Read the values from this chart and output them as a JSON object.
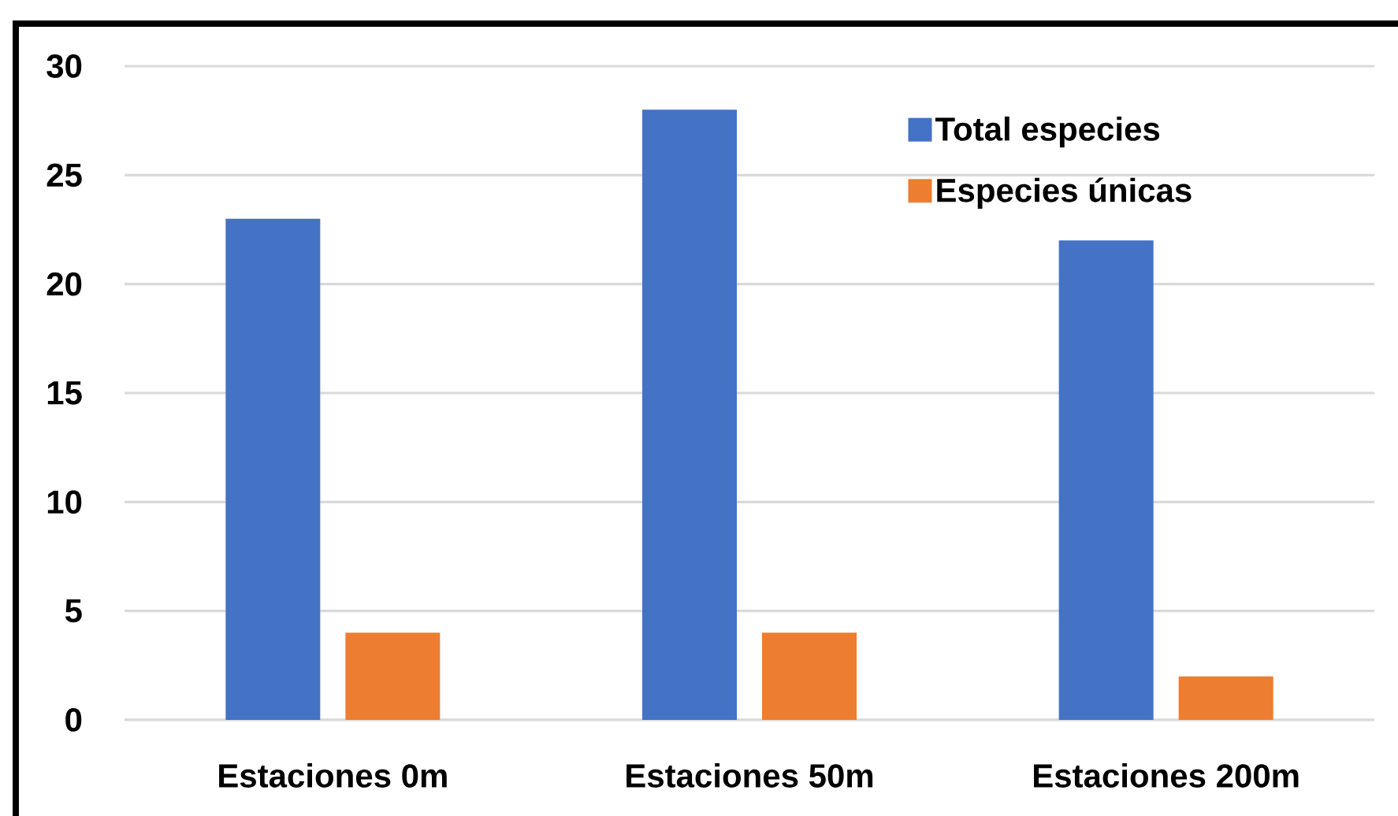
{
  "chart_data": {
    "type": "bar",
    "categories": [
      "Estaciones 0m",
      "Estaciones 50m",
      "Estaciones 200m"
    ],
    "series": [
      {
        "name": "Total especies",
        "color": "#4472c4",
        "values": [
          23,
          28,
          22
        ]
      },
      {
        "name": "Especies únicas",
        "color": "#ed7d31",
        "values": [
          4,
          4,
          2
        ]
      }
    ],
    "ylim": [
      0,
      30
    ],
    "yticks": [
      0,
      5,
      10,
      15,
      20,
      25,
      30
    ],
    "grid": "y",
    "legend": "top right"
  }
}
